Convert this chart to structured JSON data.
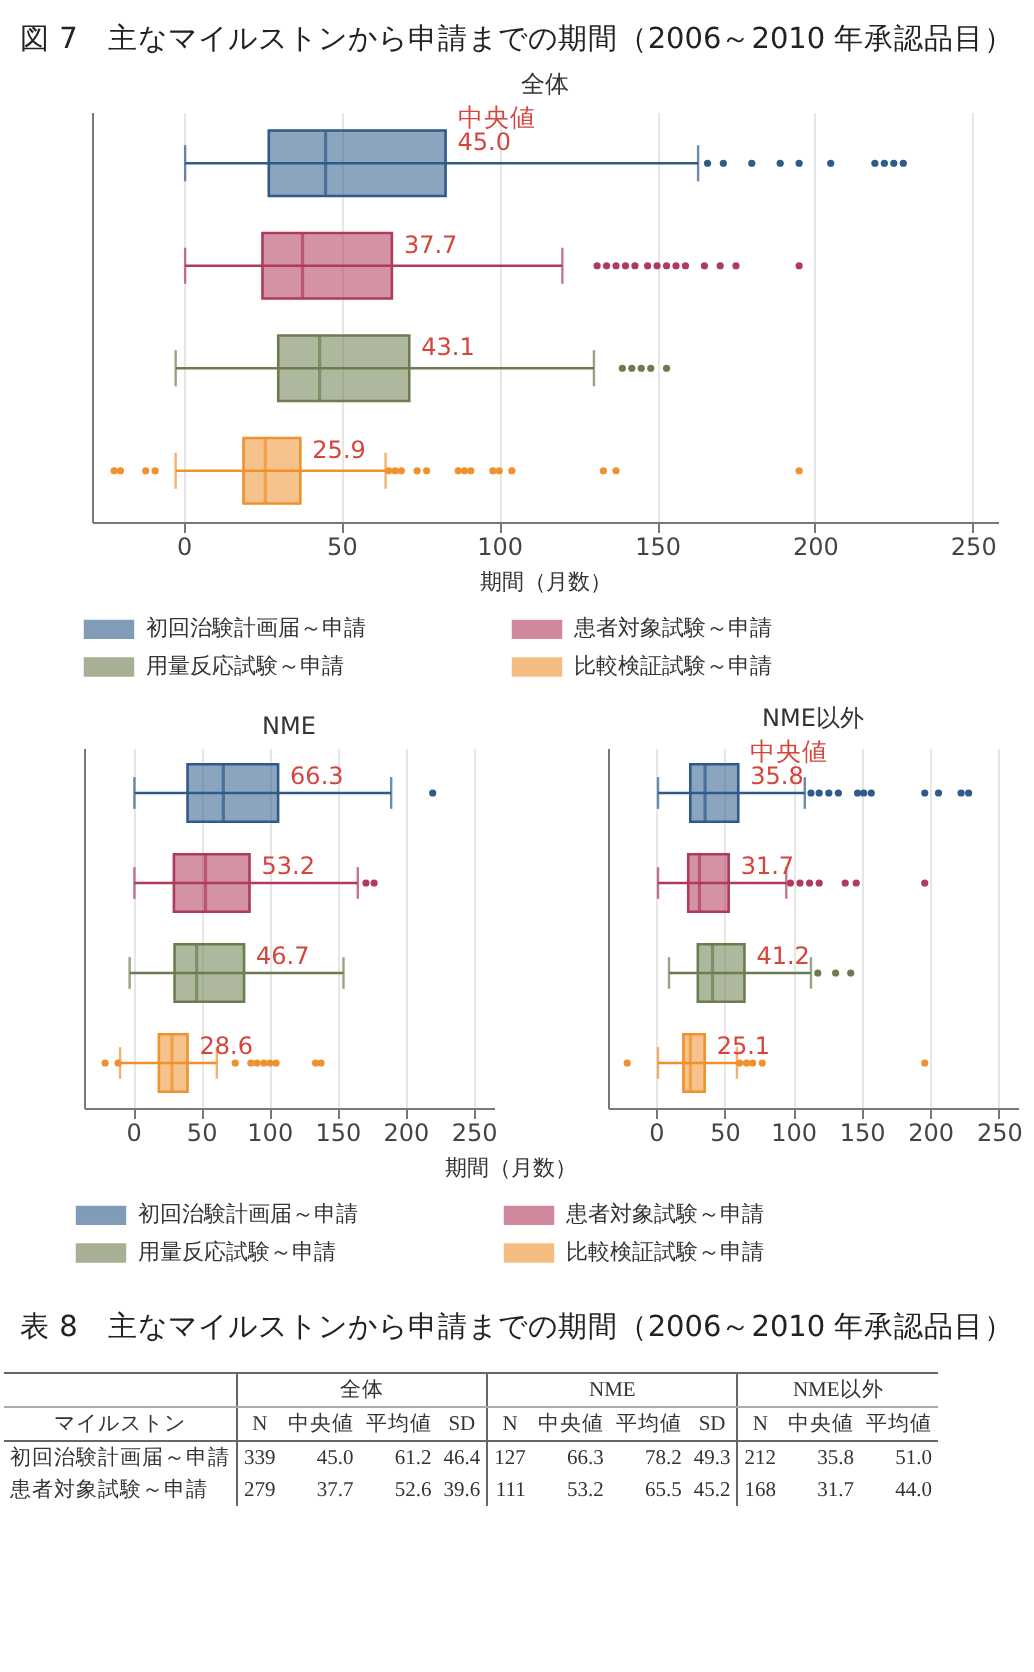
{
  "chart_data": [
    {
      "type": "box",
      "title": "図 7　主なマイルストンから申請までの期間（2006～2010 年承認品目）",
      "subtitle": "全体",
      "orientation": "horizontal",
      "categories": [
        null,
        null,
        null,
        null
      ],
      "xlabel": "期間（月数）",
      "xlim": [
        -29,
        258
      ],
      "xticks": [
        0,
        50,
        100,
        150,
        200,
        250
      ],
      "grid": "x",
      "legend": "bottom",
      "marker": "circle",
      "annotations": [
        "中央値"
      ],
      "series": [
        {
          "name": "初回治験計画届～申請",
          "color": "#2e5b8a",
          "value_labels": [
            "45.0",
            null,
            null,
            null
          ],
          "boxes": [
            {
              "low": 0.5,
              "q1": 27,
              "median": 45.0,
              "q3": 83,
              "high": 163,
              "outliers": [
                166,
                171,
                180,
                189,
                195,
                205,
                219,
                222,
                225,
                228
              ]
            },
            null,
            null,
            null
          ]
        },
        {
          "name": "患者対象試験～申請",
          "color": "#b03a5b",
          "value_labels": [
            null,
            "37.7",
            null,
            null
          ],
          "boxes": [
            null,
            {
              "low": 0.5,
              "q1": 25,
              "median": 37.7,
              "q3": 66,
              "high": 120,
              "outliers": [
                131,
                134,
                137,
                140,
                143,
                147,
                150,
                153,
                156,
                159,
                165,
                170,
                175,
                195
              ]
            },
            null,
            null
          ]
        },
        {
          "name": "用量反応試験～申請",
          "color": "#6b7d4e",
          "value_labels": [
            null,
            null,
            "43.1",
            null
          ],
          "boxes": [
            null,
            null,
            {
              "low": -2.5,
              "q1": 30,
              "median": 43.1,
              "q3": 71.5,
              "high": 130,
              "outliers": [
                139,
                142,
                145,
                148,
                153
              ]
            },
            null
          ]
        },
        {
          "name": "比較検証試験～申請",
          "color": "#f0912e",
          "value_labels": [
            null,
            null,
            null,
            "25.9"
          ],
          "boxes": [
            null,
            null,
            null,
            {
              "low": -2.5,
              "q1": 19,
              "median": 25.9,
              "q3": 37,
              "high": 64,
              "outliers": [
                -22,
                -20,
                -12,
                -9,
                65,
                67,
                69,
                74,
                77,
                87,
                89,
                91,
                98,
                100,
                104,
                133,
                137,
                195
              ]
            }
          ]
        }
      ]
    },
    {
      "type": "box",
      "title": "NME",
      "orientation": "horizontal",
      "categories": [
        null,
        null,
        null,
        null
      ],
      "xlabel": "期間（月数）",
      "xlim": [
        -36,
        265
      ],
      "xticks": [
        0,
        50,
        100,
        150,
        200,
        250
      ],
      "grid": "x",
      "legend": "bottom",
      "marker": "circle",
      "series": [
        {
          "name": "初回治験計画届～申請",
          "color": "#2e5b8a",
          "value_labels": [
            "66.3",
            null,
            null,
            null
          ],
          "boxes": [
            {
              "low": 1,
              "q1": 40,
              "median": 66.3,
              "q3": 106.5,
              "high": 189.5,
              "outliers": [
                220
              ]
            },
            null,
            null,
            null
          ]
        },
        {
          "name": "患者対象試験～申請",
          "color": "#b03a5b",
          "value_labels": [
            null,
            "53.2",
            null,
            null
          ],
          "boxes": [
            null,
            {
              "low": 1,
              "q1": 30,
              "median": 53.2,
              "q3": 85.5,
              "high": 165,
              "outliers": [
                171,
                177
              ]
            },
            null,
            null
          ]
        },
        {
          "name": "用量反応試験～申請",
          "color": "#6b7d4e",
          "value_labels": [
            null,
            null,
            "46.7",
            null
          ],
          "boxes": [
            null,
            null,
            {
              "low": -2.5,
              "q1": 30.5,
              "median": 46.7,
              "q3": 81.5,
              "high": 154.5
            },
            null
          ]
        },
        {
          "name": "比較検証試験～申請",
          "color": "#f0912e",
          "value_labels": [
            null,
            null,
            null,
            "28.6"
          ],
          "boxes": [
            null,
            null,
            null,
            {
              "low": -9.5,
              "q1": 19,
              "median": 28.6,
              "q3": 40,
              "high": 61.5,
              "outliers": [
                -20.5,
                -11,
                75,
                86.5,
                91,
                96,
                100.5,
                105,
                134,
                138
              ]
            }
          ]
        }
      ]
    },
    {
      "type": "box",
      "title": "NME以外",
      "orientation": "horizontal",
      "categories": [
        null,
        null,
        null,
        null
      ],
      "xlim": [
        -35,
        264
      ],
      "xticks": [
        0,
        50,
        100,
        150,
        200,
        250
      ],
      "grid": "x",
      "legend": "bottom",
      "marker": "circle",
      "annotations": [
        "中央値"
      ],
      "series": [
        {
          "name": "初回治験計画届～申請",
          "color": "#2e5b8a",
          "value_labels": [
            "35.8",
            null,
            null,
            null
          ],
          "boxes": [
            {
              "low": 1.5,
              "q1": 25,
              "median": 35.8,
              "q3": 60,
              "high": 108.5,
              "outliers": [
                113,
                119,
                126,
                133,
                147,
                151.5,
                157,
                196,
                206,
                222.5,
                228
              ]
            },
            null,
            null,
            null
          ]
        },
        {
          "name": "患者対象試験～申請",
          "color": "#b03a5b",
          "value_labels": [
            null,
            "31.7",
            null,
            null
          ],
          "boxes": [
            null,
            {
              "low": 1.5,
              "q1": 23.5,
              "median": 31.7,
              "q3": 53,
              "high": 95,
              "outliers": [
                98,
                105,
                112,
                119,
                138,
                146,
                196
              ]
            },
            null,
            null
          ]
        },
        {
          "name": "用量反応試験～申請",
          "color": "#6b7d4e",
          "value_labels": [
            null,
            null,
            "41.2",
            null
          ],
          "boxes": [
            null,
            null,
            {
              "low": 9.5,
              "q1": 30.5,
              "median": 41.2,
              "q3": 64.5,
              "high": 113,
              "outliers": [
                118,
                131,
                142
              ]
            },
            null
          ]
        },
        {
          "name": "比較検証試験～申請",
          "color": "#f0912e",
          "value_labels": [
            null,
            null,
            null,
            "25.1"
          ],
          "boxes": [
            null,
            null,
            null,
            {
              "low": 1.5,
              "q1": 20,
              "median": 25.1,
              "q3": 35.5,
              "high": 59,
              "outliers": [
                -21,
                61,
                66,
                70.5,
                77.5,
                196
              ]
            }
          ]
        }
      ]
    },
    {
      "type": "heatmap",
      "title": "表 8　主なマイルストンから申請までの期間（2006～2010 年承認品目）",
      "annotations": [
        "全体",
        "NME",
        "NME以外",
        "マイルストン"
      ],
      "categories": [
        "N",
        "中央値",
        "平均値",
        "SD",
        "N",
        "中央値",
        "平均値",
        "SD",
        "N",
        "中央値",
        "平均値"
      ],
      "y_categories": [
        "初回治験計画届～申請",
        "患者対象試験～申請"
      ],
      "cells": [
        [
          339,
          45.0,
          61.2,
          46.4,
          127,
          66.3,
          78.2,
          49.3,
          212,
          35.8,
          51.0
        ],
        [
          279,
          37.7,
          52.6,
          39.6,
          111,
          53.2,
          65.5,
          45.2,
          168,
          31.7,
          44.0
        ]
      ],
      "cell_labels": [
        [
          "339",
          "45.0",
          "61.2",
          "46.4",
          "127",
          "66.3",
          "78.2",
          "49.3",
          "212",
          "35.8",
          "51.0"
        ],
        [
          "279",
          "37.7",
          "52.6",
          "39.6",
          "111",
          "53.2",
          "65.5",
          "45.2",
          "168",
          "31.7",
          "44.0"
        ]
      ]
    }
  ]
}
